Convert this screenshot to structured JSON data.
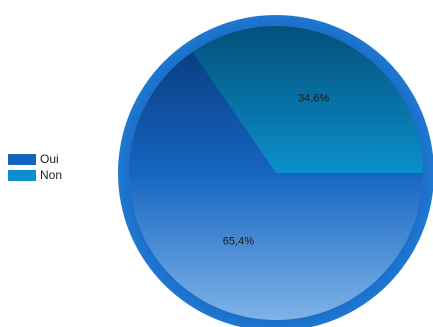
{
  "chart_data": {
    "type": "pie",
    "categories": [
      "Oui",
      "Non"
    ],
    "values": [
      65.4,
      34.6
    ],
    "data_labels": [
      "65,4%",
      "34,6%"
    ],
    "colors": [
      "#1565C0",
      "#0A8FCC"
    ],
    "title": "",
    "legend": {
      "placement": "left",
      "entries": [
        "Oui",
        "Non"
      ]
    }
  }
}
